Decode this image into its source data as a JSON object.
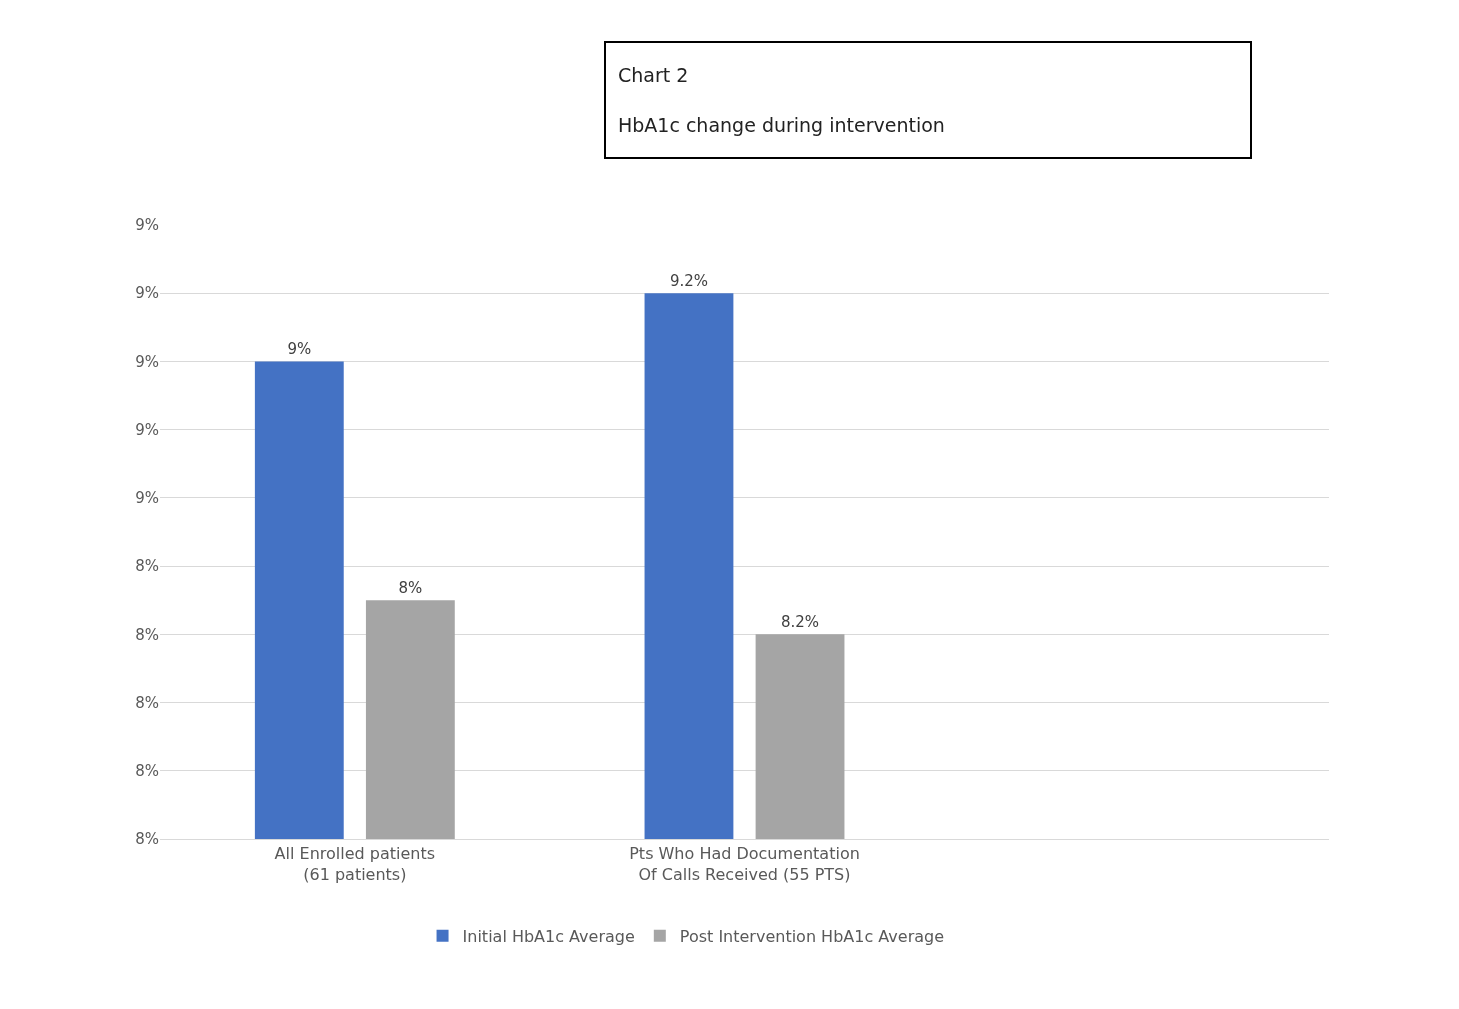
{
  "chart_data": {
    "type": "bar",
    "title": "Chart 2",
    "subtitle": "HbA1c change during intervention",
    "categories": [
      "All Enrolled patients (61 patients)",
      "Pts Who Had Documentation Of Calls Received (55 PTS)"
    ],
    "series": [
      {
        "name": "Initial HbA1c Average",
        "color": "#4472c4",
        "values": [
          9.0,
          9.2
        ],
        "value_labels": [
          "9%",
          "9.2%"
        ]
      },
      {
        "name": "Post Intervention HbA1c Average",
        "color": "#a5a5a5",
        "values": [
          8.3,
          8.2
        ],
        "value_labels": [
          "8%",
          "8.2%"
        ]
      }
    ],
    "ylim": [
      7.6,
      9.4
    ],
    "yticks": [
      {
        "value": 7.6,
        "label": "8%"
      },
      {
        "value": 7.8,
        "label": "8%"
      },
      {
        "value": 8.0,
        "label": "8%"
      },
      {
        "value": 8.2,
        "label": "8%"
      },
      {
        "value": 8.4,
        "label": "8%"
      },
      {
        "value": 8.6,
        "label": "9%"
      },
      {
        "value": 8.8,
        "label": "9%"
      },
      {
        "value": 9.0,
        "label": "9%"
      },
      {
        "value": 9.2,
        "label": "9%"
      },
      {
        "value": 9.4,
        "label": "9%"
      }
    ],
    "grid": "y",
    "legend": "bottom"
  }
}
